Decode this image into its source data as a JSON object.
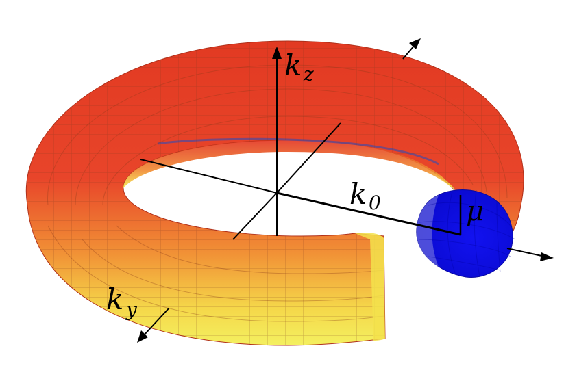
{
  "labels": {
    "kz_base": "k",
    "kz_sub": "z",
    "ky_base": "k",
    "ky_sub": "y",
    "k0_base": "k",
    "k0_sub": "0",
    "mu": "μ"
  },
  "colors": {
    "outer": "#e3321f",
    "mid": "#f08a2c",
    "inner": "#f6f04e",
    "inner_rim": "#5a5aa0",
    "cross_section": "#1010ee",
    "grid": "#7a4a2a",
    "axis": "#000000"
  }
}
